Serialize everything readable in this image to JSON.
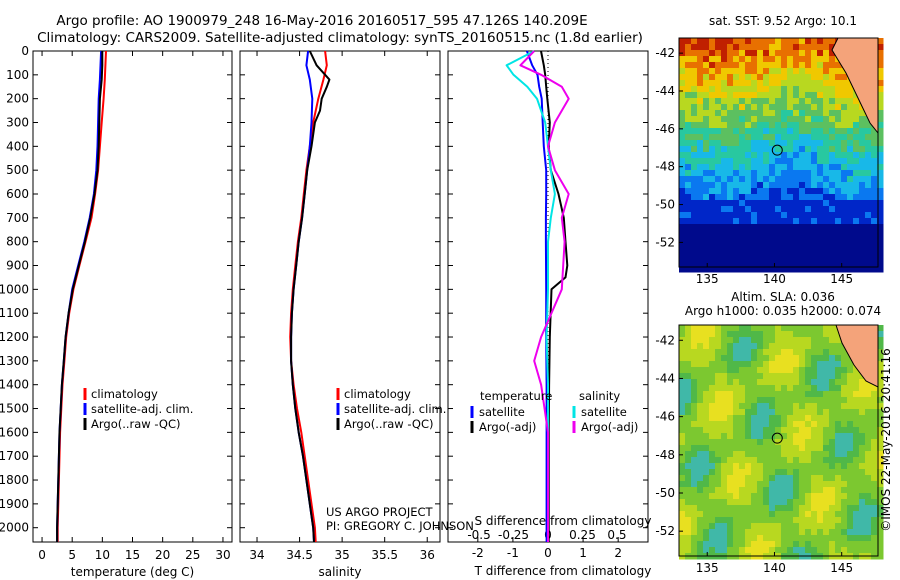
{
  "header": {
    "title_line1": "Argo profile: AO 1900979_248 16-May-2016 20160517_595 47.126S 140.209E",
    "title_line2": "Climatology: CARS2009. Satellite-adjusted climatology: synTS_20160515.nc (1.8d earlier)"
  },
  "colors": {
    "climatology": "#ff0000",
    "satellite": "#0000ff",
    "argo": "#000000",
    "salinity_satellite": "#00e5e5",
    "salinity_argo": "#ee00ee"
  },
  "depth_axis": {
    "ticks": [
      0,
      100,
      200,
      300,
      400,
      500,
      600,
      700,
      800,
      900,
      1000,
      1100,
      1200,
      1300,
      1400,
      1500,
      1600,
      1700,
      1800,
      1900,
      2000
    ],
    "range": [
      0,
      2060
    ]
  },
  "chart_data": [
    {
      "type": "line",
      "id": "temperature",
      "xlabel": "temperature (deg C)",
      "xlim": [
        -1.5,
        31.5
      ],
      "xticks": [
        0,
        5,
        10,
        15,
        20,
        25,
        30
      ],
      "ylim": [
        0,
        2060
      ],
      "legend": [
        "climatology",
        "satellite-adj. clim.",
        "Argo(..raw -QC)"
      ],
      "series": [
        {
          "name": "climatology",
          "color": "#ff0000",
          "depth": [
            0,
            60,
            120,
            200,
            300,
            400,
            500,
            600,
            700,
            800,
            900,
            1000,
            1100,
            1200,
            1300,
            1400,
            1500,
            1600,
            1700,
            1800,
            1900,
            2000,
            2060
          ],
          "values": [
            10.6,
            10.5,
            10.4,
            10.2,
            9.9,
            9.6,
            9.3,
            8.8,
            8.2,
            7.2,
            6.2,
            5.2,
            4.5,
            4.0,
            3.7,
            3.4,
            3.2,
            3.0,
            2.9,
            2.8,
            2.7,
            2.6,
            2.6
          ]
        },
        {
          "name": "satellite-adj. clim.",
          "color": "#0000ff",
          "depth": [
            0,
            60,
            120,
            200,
            300,
            400,
            500,
            600,
            700,
            800,
            900,
            1000,
            1100,
            1200,
            1300,
            1400,
            1500,
            1600,
            1700,
            1800,
            1900,
            2000,
            2060
          ],
          "values": [
            9.8,
            9.7,
            9.6,
            9.4,
            9.3,
            9.2,
            9.0,
            8.6,
            7.9,
            7.0,
            6.0,
            5.0,
            4.4,
            3.9,
            3.6,
            3.3,
            3.1,
            2.9,
            2.8,
            2.7,
            2.6,
            2.5,
            2.5
          ]
        },
        {
          "name": "Argo(..raw -QC)",
          "color": "#000000",
          "depth": [
            0,
            60,
            120,
            200,
            300,
            400,
            500,
            600,
            700,
            800,
            900,
            1000,
            1100,
            1200,
            1300,
            1400,
            1500,
            1600,
            1700,
            1800,
            1900,
            2000,
            2060
          ],
          "values": [
            10.0,
            10.0,
            9.9,
            9.6,
            9.5,
            9.4,
            9.2,
            8.7,
            8.0,
            7.1,
            6.1,
            5.1,
            4.4,
            3.9,
            3.6,
            3.3,
            3.1,
            2.9,
            2.8,
            2.7,
            2.6,
            2.5,
            2.5
          ]
        }
      ]
    },
    {
      "type": "line",
      "id": "salinity",
      "xlabel": "salinity",
      "xlim": [
        33.8,
        36.15
      ],
      "xticks": [
        34,
        34.5,
        35,
        35.5,
        36
      ],
      "xtick_labels": [
        "34",
        "34.5",
        "35",
        "35.5",
        "36"
      ],
      "ylim": [
        0,
        2060
      ],
      "legend": [
        "climatology",
        "satellite-adj. clim.",
        "Argo(..raw -QC)"
      ],
      "annotation": [
        "US ARGO PROJECT",
        "PI: GREGORY C. JOHNSON"
      ],
      "series": [
        {
          "name": "climatology",
          "color": "#ff0000",
          "depth": [
            0,
            60,
            120,
            200,
            300,
            400,
            500,
            600,
            700,
            800,
            900,
            1000,
            1100,
            1200,
            1300,
            1400,
            1500,
            1600,
            1700,
            1800,
            1900,
            2000,
            2060
          ],
          "values": [
            34.8,
            34.82,
            34.78,
            34.72,
            34.66,
            34.62,
            34.58,
            34.55,
            34.52,
            34.48,
            34.45,
            34.42,
            34.4,
            34.39,
            34.4,
            34.43,
            34.47,
            34.52,
            34.56,
            34.6,
            34.64,
            34.68,
            34.69
          ]
        },
        {
          "name": "satellite-adj. clim.",
          "color": "#0000ff",
          "depth": [
            0,
            60,
            120,
            200,
            300,
            400,
            500,
            600,
            700,
            800,
            900,
            1000,
            1100,
            1200,
            1300,
            1400,
            1500,
            1600,
            1700,
            1800,
            1900,
            2000,
            2060
          ],
          "values": [
            34.6,
            34.58,
            34.62,
            34.65,
            34.64,
            34.62,
            34.59,
            34.56,
            34.53,
            34.49,
            34.46,
            34.43,
            34.41,
            34.4,
            34.4,
            34.42,
            34.45,
            34.49,
            34.54,
            34.58,
            34.62,
            34.66,
            34.67
          ]
        },
        {
          "name": "Argo(..raw -QC)",
          "color": "#000000",
          "depth": [
            0,
            60,
            120,
            150,
            200,
            250,
            300,
            400,
            500,
            600,
            700,
            800,
            900,
            1000,
            1100,
            1200,
            1300,
            1400,
            1500,
            1600,
            1700,
            1800,
            1900,
            2000,
            2060
          ],
          "values": [
            34.62,
            34.7,
            34.85,
            34.82,
            34.76,
            34.74,
            34.68,
            34.64,
            34.59,
            34.56,
            34.53,
            34.49,
            34.46,
            34.43,
            34.41,
            34.4,
            34.4,
            34.42,
            34.45,
            34.49,
            34.54,
            34.58,
            34.62,
            34.66,
            34.67
          ]
        }
      ]
    },
    {
      "type": "line",
      "id": "differences",
      "xlabel": "T difference from climatology",
      "xlabel_top": "S difference from climatology",
      "xlim": [
        -1.45,
        1.45
      ],
      "xticks_T": [
        -2,
        -1,
        0,
        1,
        2
      ],
      "xticks_S": [
        -0.5,
        -0.25,
        0,
        0.25,
        0.5
      ],
      "ylim": [
        0,
        2060
      ],
      "legend": {
        "temperature_header": "temperature",
        "salinity_header": "salinity",
        "temperature": [
          "satellite",
          "Argo(-adj)"
        ],
        "salinity": [
          "satellite",
          "Argo(-adj)"
        ]
      },
      "series": [
        {
          "name": "temperature satellite",
          "color": "#0000ff",
          "depth": [
            0,
            60,
            100,
            150,
            200,
            300,
            400,
            500,
            600,
            700,
            800,
            1000,
            1200,
            1400,
            1600,
            1800,
            2000,
            2060
          ],
          "values": [
            -0.6,
            -0.45,
            -0.3,
            -0.25,
            -0.18,
            -0.15,
            -0.12,
            -0.05,
            -0.05,
            -0.06,
            -0.06,
            -0.05,
            -0.05,
            -0.04,
            -0.04,
            -0.04,
            -0.04,
            -0.04
          ]
        },
        {
          "name": "temperature Argo(-adj)",
          "color": "#000000",
          "depth": [
            0,
            60,
            100,
            150,
            200,
            300,
            400,
            500,
            600,
            700,
            800,
            900,
            950,
            1000,
            1200,
            1400,
            1600,
            1800,
            2000,
            2060
          ],
          "values": [
            -0.2,
            -0.12,
            -0.08,
            -0.05,
            -0.02,
            0.05,
            0.02,
            0.08,
            0.3,
            0.45,
            0.5,
            0.55,
            0.5,
            0.1,
            0.05,
            0.03,
            0.02,
            0.02,
            0.02,
            0.02
          ]
        },
        {
          "name": "salinity satellite",
          "color": "#00e5e5",
          "depth": [
            0,
            60,
            100,
            150,
            200,
            300,
            400,
            500,
            600,
            700,
            800,
            1000,
            1200,
            1400,
            1600,
            1800,
            2000,
            2060
          ],
          "values": [
            -0.1,
            -0.3,
            -0.25,
            -0.15,
            -0.08,
            -0.02,
            0.0,
            0.02,
            0.05,
            0.02,
            0.0,
            0.0,
            -0.01,
            0.0,
            0.0,
            0.0,
            0.0,
            0.0
          ]
        },
        {
          "name": "salinity Argo(-adj)",
          "color": "#ee00ee",
          "depth": [
            0,
            60,
            100,
            150,
            200,
            300,
            400,
            500,
            600,
            700,
            800,
            1000,
            1200,
            1300,
            1400,
            1600,
            1800,
            2000,
            2060
          ],
          "values": [
            -0.1,
            -0.2,
            -0.05,
            0.1,
            0.15,
            0.05,
            0.0,
            0.05,
            0.15,
            0.1,
            0.12,
            0.1,
            -0.05,
            -0.1,
            -0.05,
            0.0,
            0.0,
            0.0,
            0.0
          ]
        }
      ]
    },
    {
      "type": "heatmap",
      "id": "sst-map",
      "title": "sat. SST: 9.52  Argo: 10.1",
      "xlim": [
        132.9,
        147.7
      ],
      "ylim": [
        -53.3,
        -41.2
      ],
      "xticks": [
        135,
        140,
        145
      ],
      "yticks": [
        -42,
        -44,
        -46,
        -48,
        -50,
        -52
      ],
      "marker": {
        "lon": 140.209,
        "lat": -47.126
      }
    },
    {
      "type": "heatmap",
      "id": "sla-map",
      "title_line1": "Altim. SLA: 0.036",
      "title_line2": "Argo h1000: 0.035 h2000: 0.074",
      "xlim": [
        132.9,
        147.7
      ],
      "ylim": [
        -53.3,
        -41.2
      ],
      "xticks": [
        135,
        140,
        145
      ],
      "yticks": [
        -42,
        -44,
        -46,
        -48,
        -50,
        -52
      ],
      "marker": {
        "lon": 140.209,
        "lat": -47.126
      }
    }
  ],
  "credit": "©IMOS 22-May-2016 20:41:16"
}
